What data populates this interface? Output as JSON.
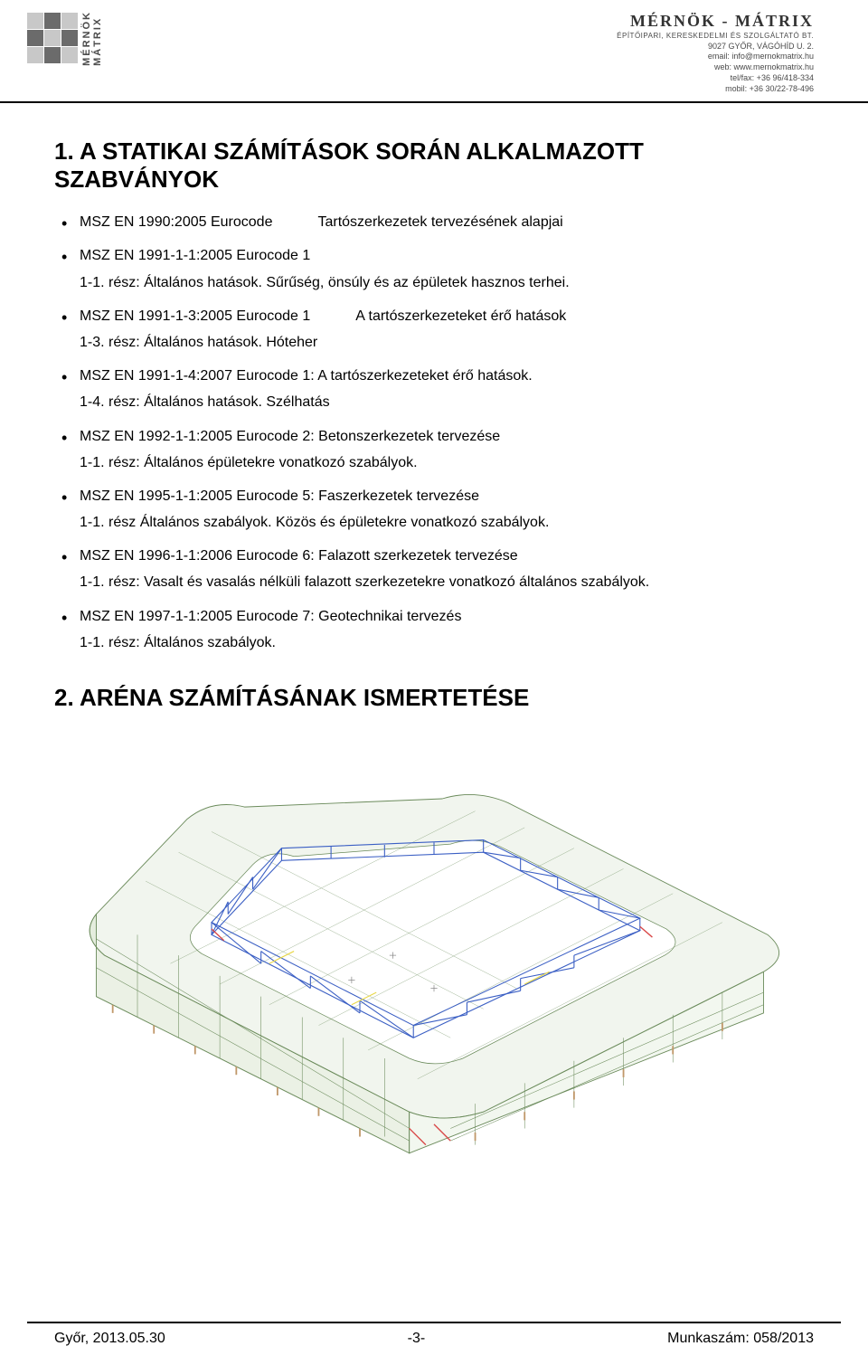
{
  "header": {
    "logo_left_line1": "MÉRNÖK",
    "logo_left_line2": "MÁTRIX",
    "company_name": "MÉRNÖK - MÁTRIX",
    "company_sub": "ÉPÍTŐIPARI, KERESKEDELMI ÉS SZOLGÁLTATÓ BT.",
    "address": "9027 GYŐR, VÁGÓHÍD U. 2.",
    "email": "email: info@mernokmatrix.hu",
    "web": "web: www.mernokmatrix.hu",
    "tel": "tel/fax: +36 96/418-334",
    "mobil": "mobil: +36 30/22-78-496"
  },
  "section1": {
    "title": "1. A STATIKAI SZÁMÍTÁSOK SORÁN ALKALMAZOTT SZABVÁNYOK",
    "items": [
      {
        "main_left": "MSZ EN 1990:2005 Eurocode",
        "main_right": "Tartószerkezetek tervezésének alapjai",
        "sub": null
      },
      {
        "main_left": "MSZ EN 1991-1-1:2005 Eurocode 1",
        "main_right": null,
        "sub": "1-1. rész: Általános hatások. Sűrűség, önsúly és az épületek hasznos terhei."
      },
      {
        "main_left": "MSZ EN 1991-1-3:2005 Eurocode 1",
        "main_right": "A tartószerkezeteket érő hatások",
        "sub": "1-3. rész: Általános hatások. Hóteher"
      },
      {
        "main_left": "MSZ EN 1991-1-4:2007 Eurocode 1: A tartószerkezeteket érő hatások.",
        "main_right": null,
        "sub": "1-4. rész: Általános hatások. Szélhatás"
      },
      {
        "main_left": "MSZ EN 1992-1-1:2005 Eurocode 2: Betonszerkezetek tervezése",
        "main_right": null,
        "sub": "1-1. rész: Általános épületekre vonatkozó szabályok."
      },
      {
        "main_left": "MSZ EN 1995-1-1:2005 Eurocode 5: Faszerkezetek tervezése",
        "main_right": null,
        "sub": "1-1. rész Általános szabályok. Közös és épületekre vonatkozó szabályok."
      },
      {
        "main_left": "MSZ EN 1996-1-1:2006 Eurocode 6: Falazott szerkezetek tervezése",
        "main_right": null,
        "sub": "1-1. rész: Vasalt és vasalás nélküli falazott szerkezetekre vonatkozó általános szabályok."
      },
      {
        "main_left": "MSZ EN 1997-1-1:2005 Eurocode 7: Geotechnikai tervezés",
        "main_right": null,
        "sub": "1-1. rész: Általános szabályok."
      }
    ]
  },
  "section2": {
    "title": "2. ARÉNA SZÁMÍTÁSÁNAK ISMERTETÉSE"
  },
  "diagram": {
    "type": "3d-structural-wireframe",
    "description": "Isometric wireframe of rounded-rectangle arena building",
    "colors": {
      "outline": "#6a8a5a",
      "fill": "#e8efe2",
      "structure": "#3b5fc4",
      "accent_red": "#d94848",
      "accent_yellow": "#e8d84a",
      "foundation": "#c0986a"
    },
    "background": "#ffffff"
  },
  "footer": {
    "left": "Győr, 2013.05.30",
    "center": "-3-",
    "right": "Munkaszám: 058/2013"
  }
}
